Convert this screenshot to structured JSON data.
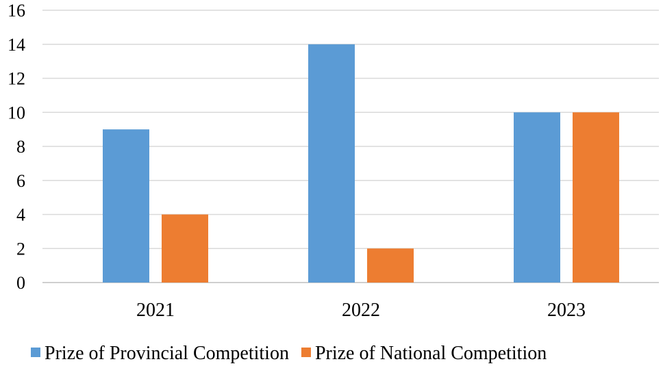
{
  "chart_data": {
    "type": "bar",
    "title": "",
    "xlabel": "",
    "ylabel": "",
    "categories": [
      "2021",
      "2022",
      "2023"
    ],
    "ylim": [
      0,
      16
    ],
    "yticks": [
      "0",
      "2",
      "4",
      "6",
      "8",
      "10",
      "12",
      "14",
      "16"
    ],
    "grid": true,
    "legend_position": "bottom",
    "series": [
      {
        "name": "Prize of Provincial Competition",
        "values": [
          9,
          14,
          10
        ],
        "color": "#5b9bd5"
      },
      {
        "name": "Prize of National Competition",
        "values": [
          4,
          2,
          10
        ],
        "color": "#ed7d31"
      }
    ]
  }
}
